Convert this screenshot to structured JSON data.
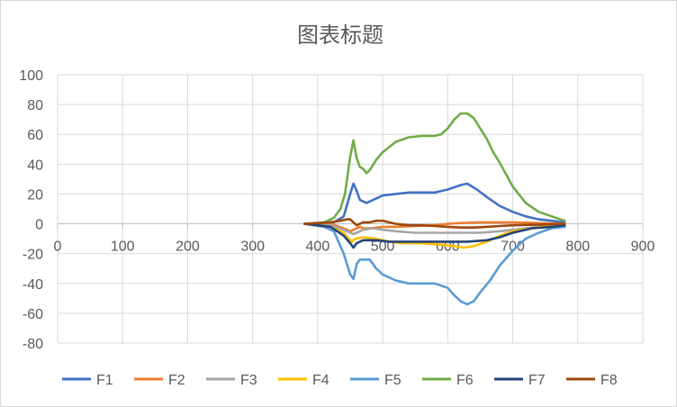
{
  "chart_data": {
    "type": "line",
    "title": "图表标题",
    "xlabel": "",
    "ylabel": "",
    "xlim": [
      0,
      900
    ],
    "ylim": [
      -80,
      100
    ],
    "x_ticks": [
      0,
      100,
      200,
      300,
      400,
      500,
      600,
      700,
      800,
      900
    ],
    "y_ticks": [
      100,
      80,
      60,
      40,
      20,
      0,
      -20,
      -40,
      -60,
      -80
    ],
    "grid": true,
    "legend_position": "bottom",
    "series": [
      {
        "name": "F1",
        "color": "#4472C4",
        "points": [
          [
            380,
            0
          ],
          [
            410,
            0.5
          ],
          [
            425,
            1
          ],
          [
            440,
            5
          ],
          [
            450,
            20
          ],
          [
            455,
            27
          ],
          [
            460,
            22
          ],
          [
            465,
            16
          ],
          [
            475,
            14
          ],
          [
            490,
            17
          ],
          [
            500,
            19
          ],
          [
            520,
            20
          ],
          [
            540,
            21
          ],
          [
            560,
            21
          ],
          [
            580,
            21
          ],
          [
            600,
            23
          ],
          [
            620,
            26
          ],
          [
            630,
            27
          ],
          [
            645,
            23
          ],
          [
            660,
            18
          ],
          [
            680,
            12
          ],
          [
            700,
            8
          ],
          [
            720,
            5
          ],
          [
            740,
            3
          ],
          [
            760,
            2
          ],
          [
            780,
            1
          ]
        ]
      },
      {
        "name": "F2",
        "color": "#ED7D31",
        "points": [
          [
            380,
            0
          ],
          [
            420,
            0
          ],
          [
            440,
            -3
          ],
          [
            450,
            -5
          ],
          [
            455,
            -4
          ],
          [
            460,
            -3
          ],
          [
            465,
            -2
          ],
          [
            470,
            -3
          ],
          [
            480,
            -3
          ],
          [
            500,
            -2
          ],
          [
            520,
            -2
          ],
          [
            550,
            -1.5
          ],
          [
            580,
            -1
          ],
          [
            600,
            0
          ],
          [
            620,
            0.5
          ],
          [
            650,
            1
          ],
          [
            700,
            1
          ],
          [
            740,
            0.5
          ],
          [
            780,
            0
          ]
        ]
      },
      {
        "name": "F3",
        "color": "#A5A5A5",
        "points": [
          [
            380,
            0
          ],
          [
            420,
            -1
          ],
          [
            440,
            -4
          ],
          [
            455,
            -7
          ],
          [
            460,
            -6
          ],
          [
            470,
            -4
          ],
          [
            485,
            -3
          ],
          [
            500,
            -4
          ],
          [
            520,
            -5
          ],
          [
            550,
            -6
          ],
          [
            580,
            -6
          ],
          [
            600,
            -6
          ],
          [
            620,
            -6
          ],
          [
            650,
            -6
          ],
          [
            680,
            -5
          ],
          [
            700,
            -4
          ],
          [
            740,
            -2
          ],
          [
            780,
            0
          ]
        ]
      },
      {
        "name": "F4",
        "color": "#FFC000",
        "points": [
          [
            380,
            0
          ],
          [
            420,
            -2
          ],
          [
            440,
            -6
          ],
          [
            452,
            -12
          ],
          [
            458,
            -10
          ],
          [
            470,
            -9
          ],
          [
            490,
            -10
          ],
          [
            510,
            -12
          ],
          [
            530,
            -13
          ],
          [
            560,
            -13
          ],
          [
            590,
            -14
          ],
          [
            610,
            -15
          ],
          [
            625,
            -16
          ],
          [
            640,
            -15
          ],
          [
            660,
            -12
          ],
          [
            680,
            -8
          ],
          [
            700,
            -5
          ],
          [
            730,
            -3
          ],
          [
            760,
            -1
          ],
          [
            780,
            0
          ]
        ]
      },
      {
        "name": "F5",
        "color": "#5B9BD5",
        "points": [
          [
            380,
            0
          ],
          [
            410,
            -2
          ],
          [
            425,
            -5
          ],
          [
            440,
            -20
          ],
          [
            450,
            -34
          ],
          [
            455,
            -37
          ],
          [
            460,
            -27
          ],
          [
            465,
            -24
          ],
          [
            470,
            -24
          ],
          [
            480,
            -24
          ],
          [
            490,
            -30
          ],
          [
            500,
            -34
          ],
          [
            520,
            -38
          ],
          [
            540,
            -40
          ],
          [
            560,
            -40
          ],
          [
            580,
            -40
          ],
          [
            600,
            -43
          ],
          [
            610,
            -48
          ],
          [
            620,
            -52
          ],
          [
            630,
            -54
          ],
          [
            640,
            -52
          ],
          [
            650,
            -46
          ],
          [
            665,
            -38
          ],
          [
            680,
            -28
          ],
          [
            700,
            -18
          ],
          [
            720,
            -10
          ],
          [
            740,
            -6
          ],
          [
            760,
            -3
          ],
          [
            780,
            -2
          ]
        ]
      },
      {
        "name": "F6",
        "color": "#70AD47",
        "points": [
          [
            380,
            0
          ],
          [
            410,
            1
          ],
          [
            425,
            4
          ],
          [
            435,
            10
          ],
          [
            442,
            20
          ],
          [
            450,
            45
          ],
          [
            455,
            56
          ],
          [
            460,
            44
          ],
          [
            465,
            38
          ],
          [
            470,
            37
          ],
          [
            475,
            34
          ],
          [
            480,
            36
          ],
          [
            490,
            43
          ],
          [
            500,
            48
          ],
          [
            520,
            55
          ],
          [
            540,
            58
          ],
          [
            560,
            59
          ],
          [
            580,
            59
          ],
          [
            590,
            60
          ],
          [
            600,
            64
          ],
          [
            610,
            70
          ],
          [
            620,
            74
          ],
          [
            630,
            74
          ],
          [
            640,
            71
          ],
          [
            650,
            64
          ],
          [
            660,
            57
          ],
          [
            670,
            48
          ],
          [
            680,
            41
          ],
          [
            690,
            33
          ],
          [
            700,
            25
          ],
          [
            720,
            14
          ],
          [
            740,
            8
          ],
          [
            760,
            5
          ],
          [
            780,
            2
          ]
        ]
      },
      {
        "name": "F7",
        "color": "#264478",
        "points": [
          [
            380,
            0
          ],
          [
            420,
            -2
          ],
          [
            440,
            -8
          ],
          [
            450,
            -13
          ],
          [
            455,
            -16
          ],
          [
            460,
            -13
          ],
          [
            470,
            -11
          ],
          [
            490,
            -11
          ],
          [
            510,
            -12
          ],
          [
            540,
            -12
          ],
          [
            570,
            -12
          ],
          [
            600,
            -12
          ],
          [
            630,
            -12
          ],
          [
            660,
            -11
          ],
          [
            680,
            -9
          ],
          [
            700,
            -6
          ],
          [
            730,
            -3
          ],
          [
            760,
            -2
          ],
          [
            780,
            -1
          ]
        ]
      },
      {
        "name": "F8",
        "color": "#9E480E",
        "points": [
          [
            380,
            0
          ],
          [
            420,
            1
          ],
          [
            435,
            2
          ],
          [
            445,
            3
          ],
          [
            450,
            3
          ],
          [
            455,
            1
          ],
          [
            460,
            -1
          ],
          [
            465,
            0
          ],
          [
            470,
            1
          ],
          [
            480,
            1
          ],
          [
            490,
            2
          ],
          [
            500,
            2
          ],
          [
            510,
            1
          ],
          [
            520,
            0
          ],
          [
            540,
            -1
          ],
          [
            560,
            -1
          ],
          [
            580,
            -1.5
          ],
          [
            600,
            -2
          ],
          [
            620,
            -2.5
          ],
          [
            640,
            -2.5
          ],
          [
            660,
            -2
          ],
          [
            680,
            -1.5
          ],
          [
            700,
            -1
          ],
          [
            740,
            -0.5
          ],
          [
            780,
            0
          ]
        ]
      }
    ]
  }
}
